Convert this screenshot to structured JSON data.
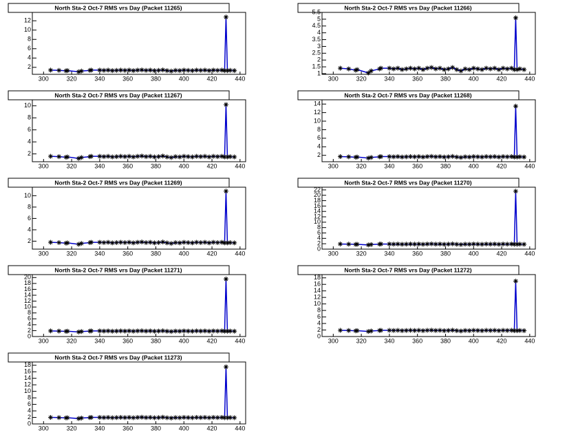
{
  "chart_data": [
    {
      "type": "line",
      "title": "North Sta-2 Oct-7 RMS vrs Day (Packet 11265)",
      "color": "#0000cc",
      "marker_color": "#000000",
      "x": [
        305,
        311,
        316,
        317,
        325,
        327,
        333,
        334,
        340,
        343,
        346,
        349,
        352,
        355,
        358,
        361,
        364,
        367,
        370,
        373,
        376,
        379,
        382,
        385,
        388,
        391,
        394,
        397,
        400,
        403,
        406,
        409,
        412,
        415,
        418,
        421,
        424,
        427,
        429,
        430,
        431,
        433,
        436
      ],
      "values": [
        1.4,
        1.35,
        1.25,
        1.3,
        1.05,
        1.2,
        1.35,
        1.4,
        1.4,
        1.35,
        1.4,
        1.3,
        1.35,
        1.4,
        1.35,
        1.4,
        1.3,
        1.4,
        1.45,
        1.35,
        1.4,
        1.3,
        1.35,
        1.45,
        1.3,
        1.2,
        1.35,
        1.3,
        1.4,
        1.35,
        1.3,
        1.4,
        1.35,
        1.4,
        1.3,
        1.4,
        1.35,
        1.4,
        1.3,
        12.8,
        1.3,
        1.35,
        1.3
      ],
      "xlim": [
        292,
        444
      ],
      "xticks": [
        300,
        320,
        340,
        360,
        380,
        400,
        420,
        440
      ],
      "ylim": [
        0.5,
        13.8
      ],
      "yticks": [
        2,
        4,
        6,
        8,
        10,
        12
      ]
    },
    {
      "type": "line",
      "title": "North Sta-2 Oct-7 RMS vrs Day (Packet 11266)",
      "color": "#0000cc",
      "marker_color": "#000000",
      "x": [
        305,
        311,
        316,
        317,
        325,
        327,
        333,
        334,
        340,
        343,
        346,
        349,
        352,
        355,
        358,
        361,
        364,
        367,
        370,
        373,
        376,
        379,
        382,
        385,
        388,
        391,
        394,
        397,
        400,
        403,
        406,
        409,
        412,
        415,
        418,
        421,
        424,
        427,
        429,
        430,
        431,
        433,
        436
      ],
      "values": [
        1.4,
        1.35,
        1.25,
        1.3,
        1.05,
        1.2,
        1.35,
        1.4,
        1.4,
        1.35,
        1.4,
        1.3,
        1.35,
        1.4,
        1.35,
        1.4,
        1.3,
        1.4,
        1.45,
        1.35,
        1.4,
        1.3,
        1.35,
        1.45,
        1.3,
        1.2,
        1.35,
        1.3,
        1.4,
        1.35,
        1.3,
        1.4,
        1.35,
        1.4,
        1.3,
        1.4,
        1.35,
        1.4,
        1.3,
        5.1,
        1.3,
        1.35,
        1.3
      ],
      "xlim": [
        292,
        444
      ],
      "xticks": [
        300,
        320,
        340,
        360,
        380,
        400,
        420,
        440
      ],
      "ylim": [
        0.95,
        5.5
      ],
      "yticks": [
        1,
        1.5,
        2,
        2.5,
        3,
        3.5,
        4,
        4.5,
        5,
        5.5
      ]
    },
    {
      "type": "line",
      "title": "North Sta-2 Oct-7 RMS vrs Day (Packet 11267)",
      "color": "#0000cc",
      "marker_color": "#000000",
      "x": [
        305,
        311,
        316,
        317,
        325,
        327,
        333,
        334,
        340,
        343,
        346,
        349,
        352,
        355,
        358,
        361,
        364,
        367,
        370,
        373,
        376,
        379,
        382,
        385,
        388,
        391,
        394,
        397,
        400,
        403,
        406,
        409,
        412,
        415,
        418,
        421,
        424,
        427,
        429,
        430,
        431,
        433,
        436
      ],
      "values": [
        1.6,
        1.55,
        1.45,
        1.5,
        1.25,
        1.4,
        1.55,
        1.6,
        1.6,
        1.55,
        1.6,
        1.5,
        1.55,
        1.6,
        1.55,
        1.6,
        1.5,
        1.6,
        1.65,
        1.55,
        1.6,
        1.5,
        1.55,
        1.65,
        1.5,
        1.4,
        1.55,
        1.5,
        1.6,
        1.55,
        1.5,
        1.6,
        1.55,
        1.6,
        1.5,
        1.6,
        1.55,
        1.6,
        1.5,
        10.2,
        1.5,
        1.55,
        1.5
      ],
      "xlim": [
        292,
        444
      ],
      "xticks": [
        300,
        320,
        340,
        360,
        380,
        400,
        420,
        440
      ],
      "ylim": [
        0.7,
        11
      ],
      "yticks": [
        2,
        4,
        6,
        8,
        10
      ]
    },
    {
      "type": "line",
      "title": "North Sta-2 Oct-7 RMS vrs Day (Packet 11268)",
      "color": "#0000cc",
      "marker_color": "#000000",
      "x": [
        305,
        311,
        316,
        317,
        325,
        327,
        333,
        334,
        340,
        343,
        346,
        349,
        352,
        355,
        358,
        361,
        364,
        367,
        370,
        373,
        376,
        379,
        382,
        385,
        388,
        391,
        394,
        397,
        400,
        403,
        406,
        409,
        412,
        415,
        418,
        421,
        424,
        427,
        429,
        430,
        431,
        433,
        436
      ],
      "values": [
        1.7,
        1.65,
        1.55,
        1.6,
        1.35,
        1.5,
        1.65,
        1.7,
        1.7,
        1.65,
        1.7,
        1.6,
        1.65,
        1.7,
        1.65,
        1.7,
        1.6,
        1.7,
        1.75,
        1.65,
        1.7,
        1.6,
        1.65,
        1.75,
        1.6,
        1.5,
        1.65,
        1.6,
        1.7,
        1.65,
        1.6,
        1.7,
        1.65,
        1.7,
        1.6,
        1.7,
        1.65,
        1.7,
        1.6,
        13.5,
        1.6,
        1.65,
        1.6
      ],
      "xlim": [
        292,
        444
      ],
      "xticks": [
        300,
        320,
        340,
        360,
        380,
        400,
        420,
        440
      ],
      "ylim": [
        0.5,
        15
      ],
      "yticks": [
        2,
        4,
        6,
        8,
        10,
        12,
        14
      ]
    },
    {
      "type": "line",
      "title": "North Sta-2 Oct-7 RMS vrs Day (Packet 11269)",
      "color": "#0000cc",
      "marker_color": "#000000",
      "x": [
        305,
        311,
        316,
        317,
        325,
        327,
        333,
        334,
        340,
        343,
        346,
        349,
        352,
        355,
        358,
        361,
        364,
        367,
        370,
        373,
        376,
        379,
        382,
        385,
        388,
        391,
        394,
        397,
        400,
        403,
        406,
        409,
        412,
        415,
        418,
        421,
        424,
        427,
        429,
        430,
        431,
        433,
        436
      ],
      "values": [
        1.8,
        1.75,
        1.65,
        1.7,
        1.45,
        1.6,
        1.75,
        1.8,
        1.8,
        1.75,
        1.8,
        1.7,
        1.75,
        1.8,
        1.75,
        1.8,
        1.7,
        1.8,
        1.85,
        1.75,
        1.8,
        1.7,
        1.75,
        1.85,
        1.7,
        1.6,
        1.75,
        1.7,
        1.8,
        1.75,
        1.7,
        1.8,
        1.75,
        1.8,
        1.7,
        1.8,
        1.75,
        1.8,
        1.7,
        10.8,
        1.7,
        1.75,
        1.7
      ],
      "xlim": [
        292,
        444
      ],
      "xticks": [
        300,
        320,
        340,
        360,
        380,
        400,
        420,
        440
      ],
      "ylim": [
        0.6,
        11.5
      ],
      "yticks": [
        2,
        4,
        6,
        8,
        10
      ]
    },
    {
      "type": "line",
      "title": "North Sta-2 Oct-7 RMS vrs Day (Packet 11270)",
      "color": "#0000cc",
      "marker_color": "#000000",
      "x": [
        305,
        311,
        316,
        317,
        325,
        327,
        333,
        334,
        340,
        343,
        346,
        349,
        352,
        355,
        358,
        361,
        364,
        367,
        370,
        373,
        376,
        379,
        382,
        385,
        388,
        391,
        394,
        397,
        400,
        403,
        406,
        409,
        412,
        415,
        418,
        421,
        424,
        427,
        429,
        430,
        431,
        433,
        436
      ],
      "values": [
        1.9,
        1.85,
        1.75,
        1.8,
        1.55,
        1.7,
        1.85,
        1.9,
        1.9,
        1.85,
        1.9,
        1.8,
        1.85,
        1.9,
        1.85,
        1.9,
        1.8,
        1.9,
        1.95,
        1.85,
        1.9,
        1.8,
        1.85,
        1.95,
        1.8,
        1.7,
        1.85,
        1.8,
        1.9,
        1.85,
        1.8,
        1.9,
        1.85,
        1.9,
        1.8,
        1.9,
        1.85,
        1.9,
        1.8,
        21.5,
        1.8,
        1.85,
        1.8
      ],
      "xlim": [
        292,
        444
      ],
      "xticks": [
        300,
        320,
        340,
        360,
        380,
        400,
        420,
        440
      ],
      "ylim": [
        0,
        23
      ],
      "yticks": [
        0,
        2,
        4,
        6,
        8,
        10,
        12,
        14,
        16,
        18,
        20,
        22
      ]
    },
    {
      "type": "line",
      "title": "North Sta-2 Oct-7 RMS vrs Day (Packet 11271)",
      "color": "#0000cc",
      "marker_color": "#000000",
      "x": [
        305,
        311,
        316,
        317,
        325,
        327,
        333,
        334,
        340,
        343,
        346,
        349,
        352,
        355,
        358,
        361,
        364,
        367,
        370,
        373,
        376,
        379,
        382,
        385,
        388,
        391,
        394,
        397,
        400,
        403,
        406,
        409,
        412,
        415,
        418,
        421,
        424,
        427,
        429,
        430,
        431,
        433,
        436
      ],
      "values": [
        1.9,
        1.85,
        1.75,
        1.8,
        1.55,
        1.7,
        1.85,
        1.9,
        1.9,
        1.85,
        1.9,
        1.8,
        1.85,
        1.9,
        1.85,
        1.9,
        1.8,
        1.9,
        1.95,
        1.85,
        1.9,
        1.8,
        1.85,
        1.95,
        1.8,
        1.7,
        1.85,
        1.8,
        1.9,
        1.85,
        1.8,
        1.9,
        1.85,
        1.9,
        1.8,
        1.9,
        1.85,
        1.9,
        1.8,
        19.5,
        1.8,
        1.85,
        1.8
      ],
      "xlim": [
        292,
        444
      ],
      "xticks": [
        300,
        320,
        340,
        360,
        380,
        400,
        420,
        440
      ],
      "ylim": [
        0,
        21
      ],
      "yticks": [
        0,
        2,
        4,
        6,
        8,
        10,
        12,
        14,
        16,
        18,
        20
      ]
    },
    {
      "type": "line",
      "title": "North Sta-2 Oct-7 RMS vrs Day (Packet 11272)",
      "color": "#0000cc",
      "marker_color": "#000000",
      "x": [
        305,
        311,
        316,
        317,
        325,
        327,
        333,
        334,
        340,
        343,
        346,
        349,
        352,
        355,
        358,
        361,
        364,
        367,
        370,
        373,
        376,
        379,
        382,
        385,
        388,
        391,
        394,
        397,
        400,
        403,
        406,
        409,
        412,
        415,
        418,
        421,
        424,
        427,
        429,
        430,
        431,
        433,
        436
      ],
      "values": [
        1.9,
        1.85,
        1.75,
        1.8,
        1.55,
        1.7,
        1.85,
        1.9,
        1.9,
        1.85,
        1.9,
        1.8,
        1.85,
        1.9,
        1.85,
        1.9,
        1.8,
        1.9,
        1.95,
        1.85,
        1.9,
        1.8,
        1.85,
        1.95,
        1.8,
        1.7,
        1.85,
        1.8,
        1.9,
        1.85,
        1.8,
        1.9,
        1.85,
        1.9,
        1.8,
        1.9,
        1.85,
        1.9,
        1.8,
        17,
        1.8,
        1.85,
        1.8
      ],
      "xlim": [
        292,
        444
      ],
      "xticks": [
        300,
        320,
        340,
        360,
        380,
        400,
        420,
        440
      ],
      "ylim": [
        0,
        19
      ],
      "yticks": [
        0,
        2,
        4,
        6,
        8,
        10,
        12,
        14,
        16,
        18
      ]
    },
    {
      "type": "line",
      "title": "North Sta-2 Oct-7 RMS vrs Day (Packet 11273)",
      "color": "#0000cc",
      "marker_color": "#000000",
      "x": [
        305,
        311,
        316,
        317,
        325,
        327,
        333,
        334,
        340,
        343,
        346,
        349,
        352,
        355,
        358,
        361,
        364,
        367,
        370,
        373,
        376,
        379,
        382,
        385,
        388,
        391,
        394,
        397,
        400,
        403,
        406,
        409,
        412,
        415,
        418,
        421,
        424,
        427,
        429,
        430,
        431,
        433,
        436
      ],
      "values": [
        2,
        1.95,
        1.85,
        1.9,
        1.65,
        1.8,
        1.95,
        2,
        2,
        1.95,
        2,
        1.9,
        1.95,
        2,
        1.95,
        2,
        1.9,
        2,
        2.05,
        1.95,
        2,
        1.9,
        1.95,
        2.05,
        1.9,
        1.8,
        1.95,
        1.9,
        2,
        1.95,
        1.9,
        2,
        1.95,
        2,
        1.9,
        2,
        1.95,
        2,
        1.9,
        17.5,
        1.9,
        1.95,
        1.9
      ],
      "xlim": [
        292,
        444
      ],
      "xticks": [
        300,
        320,
        340,
        360,
        380,
        400,
        420,
        440
      ],
      "ylim": [
        0,
        19
      ],
      "yticks": [
        0,
        2,
        4,
        6,
        8,
        10,
        12,
        14,
        16,
        18
      ]
    }
  ]
}
